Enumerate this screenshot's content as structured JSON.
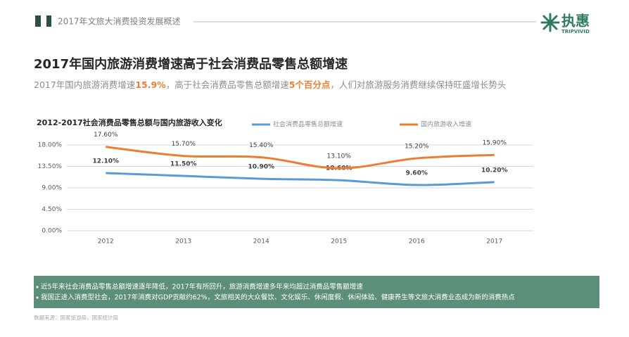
{
  "header": {
    "title": "2017年文旅大消费投资发展概述",
    "logo_text": "执惠",
    "logo_sub": "TRIPVIVID"
  },
  "headline": "2017年国内旅游消费增速高于社会消费品零售总额增速",
  "subtitle": {
    "parts": [
      "2017年国内旅游消费增速",
      "15.9%",
      "，高于社会消费品零售总额增速",
      "5个百分点",
      "，人们对旅游服务消费继续保持旺盛增长势头"
    ]
  },
  "chart_data": {
    "type": "line",
    "title": "2012-2017社会消费品零售总额与国内旅游收入变化",
    "categories": [
      "2012",
      "2013",
      "2014",
      "2015",
      "2016",
      "2017"
    ],
    "series": [
      {
        "name": "社会消费品零售总额增速",
        "color": "#5b9bd5",
        "values": [
          12.1,
          11.5,
          10.9,
          10.6,
          9.6,
          10.2
        ],
        "value_labels": [
          "12.10%",
          "11.50%",
          "10.90%",
          "10.60%",
          "9.60%",
          "10.20%"
        ]
      },
      {
        "name": "国内旅游收入增速",
        "color": "#ed7d31",
        "values": [
          17.6,
          15.7,
          15.4,
          13.1,
          15.2,
          15.9
        ],
        "value_labels": [
          "17.60%",
          "15.70%",
          "15.40%",
          "13.10%",
          "15.20%",
          "15.90%"
        ]
      }
    ],
    "ylim": [
      0,
      18
    ],
    "yticks": [
      {
        "value": 0,
        "label": "0.00%"
      },
      {
        "value": 4.5,
        "label": "4.50%"
      },
      {
        "value": 9,
        "label": "9.00%"
      },
      {
        "value": 13.5,
        "label": "13.50%"
      },
      {
        "value": 18,
        "label": "18.00%"
      }
    ],
    "grid": true,
    "legend": "top"
  },
  "notes": [
    "近5年来社会消费品零售总额增速逐年降低，2017年有所回升，旅游消费增速多年来均超过消费品零售额增速",
    "我国正进入消费型社会，2017年消费对GDP贡献约62%，文旅相关的大众餐饮、文化娱乐、休闲度假、休闲体验、健康养生等文旅大消费业态成为新的消费热点"
  ],
  "source": "数据来源：国家旅游局，国家统计局"
}
